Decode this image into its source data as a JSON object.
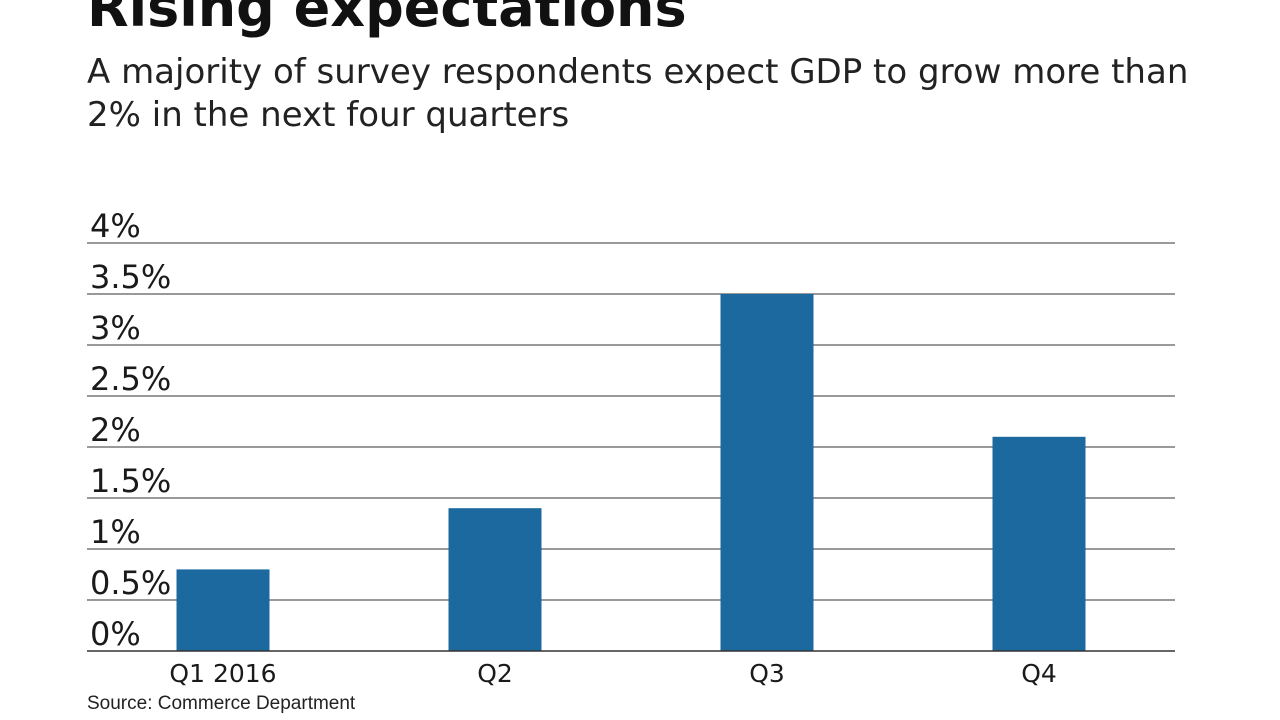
{
  "title": "Rising expectations",
  "subtitle": "A majority of survey respondents expect GDP to grow more than 2% in the next four quarters",
  "source": "Source: Commerce Department",
  "colors": {
    "bar": "#1c699f",
    "grid": "#333333",
    "text": "#1a1a1a"
  },
  "chart_data": {
    "type": "bar",
    "title": "Rising expectations",
    "subtitle": "A majority of survey respondents expect GDP to grow more than 2% in the next four quarters",
    "xlabel": "",
    "ylabel": "",
    "categories": [
      "Q1 2016",
      "Q2",
      "Q3",
      "Q4"
    ],
    "values": [
      0.8,
      1.4,
      3.5,
      2.1
    ],
    "ylim": [
      0,
      4
    ],
    "yticks": [
      0,
      0.5,
      1,
      1.5,
      2,
      2.5,
      3,
      3.5,
      4
    ],
    "ytick_labels": [
      "0%",
      "0.5%",
      "1%",
      "1.5%",
      "2%",
      "2.5%",
      "3%",
      "3.5%",
      "4%"
    ],
    "grid": true,
    "legend": "none"
  }
}
